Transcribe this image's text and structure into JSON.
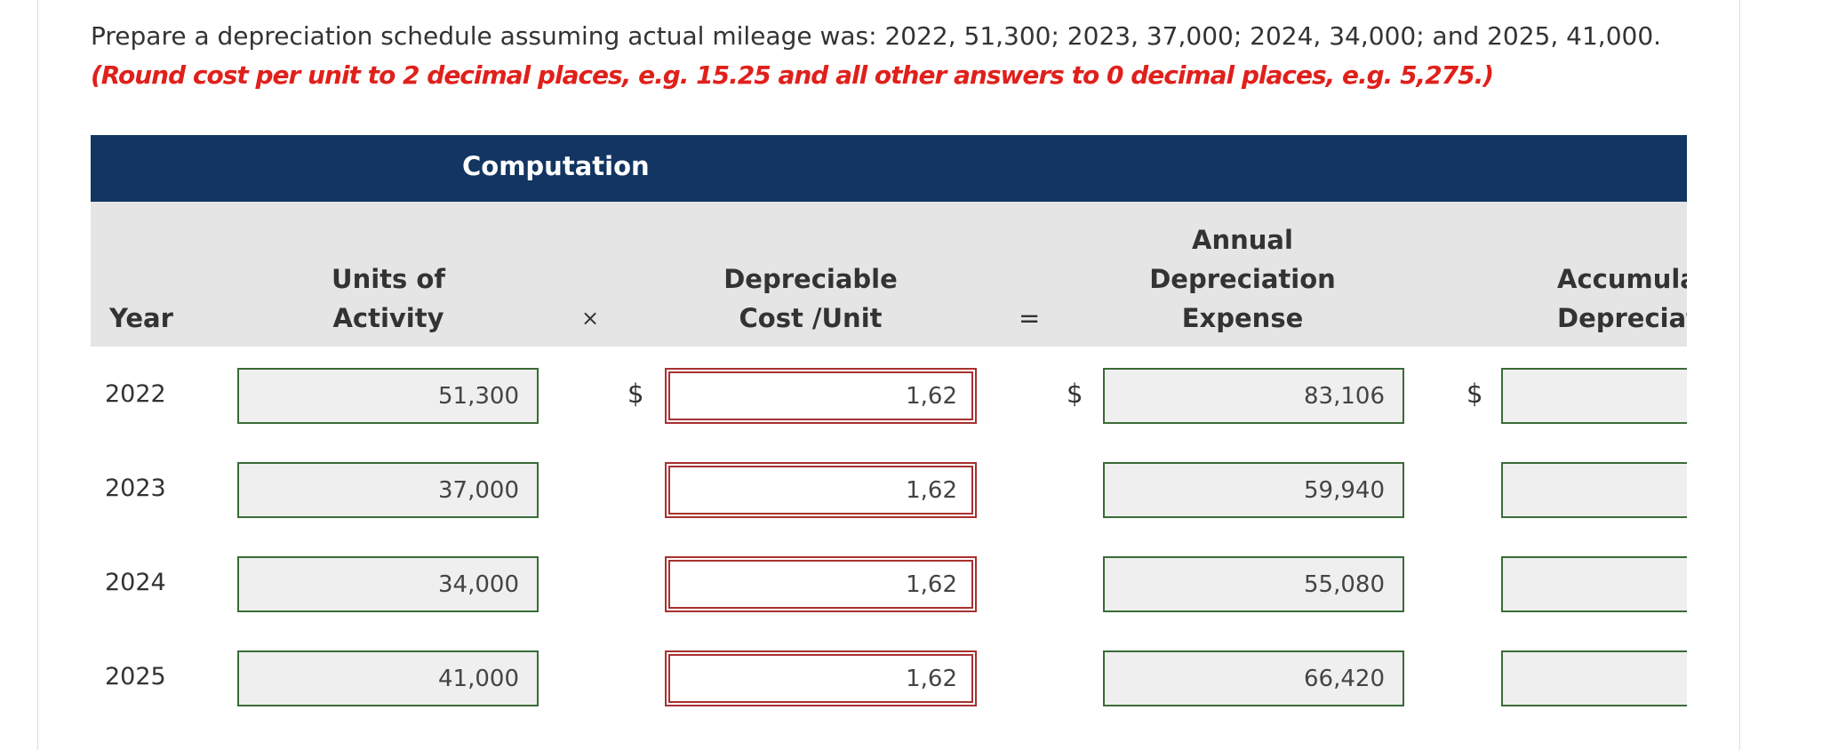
{
  "question": "Prepare a depreciation schedule assuming actual mileage was: 2022, 51,300; 2023, 37,000; 2024, 34,000; and 2025, 41,000.",
  "instruction": "(Round cost per unit to 2 decimal places, e.g. 15.25 and all other answers to 0 decimal places, e.g. 5,275.)",
  "table": {
    "group_header": "Computation",
    "headers": {
      "year": [
        "Year"
      ],
      "units": [
        "Units of",
        "Activity"
      ],
      "times": "×",
      "cost": [
        "Depreciable",
        "Cost /Unit"
      ],
      "equals": "=",
      "expense": [
        "Annual",
        "Depreciation",
        "Expense"
      ],
      "accumulated": [
        "Accumulated",
        "Depreciation"
      ]
    },
    "currency": "$",
    "rows": [
      [
        "2022",
        "51,300",
        "1,62",
        "83,106"
      ],
      [
        "2023",
        "37,000",
        "1,62",
        "59,940"
      ],
      [
        "2024",
        "34,000",
        "1,62",
        "55,080"
      ],
      [
        "2025",
        "41,000",
        "1,62",
        "66,420"
      ]
    ]
  }
}
